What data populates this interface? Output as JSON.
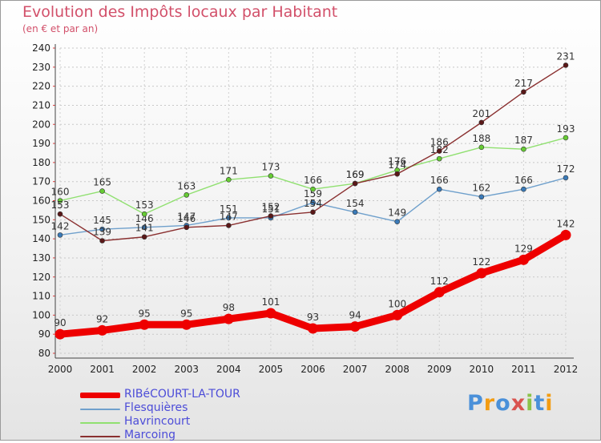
{
  "header": {
    "title": "Evolution des Impôts locaux par Habitant",
    "subtitle": "(en € et par an)"
  },
  "legend": {
    "items": [
      {
        "label": "RIBéCOURT-LA-TOUR",
        "color": "#ee0000"
      },
      {
        "label": "Flesquières",
        "color": "#6fa0cc"
      },
      {
        "label": "Havrincourt",
        "color": "#90e070"
      },
      {
        "label": "Marcoing",
        "color": "#8a3030"
      }
    ]
  },
  "logo": {
    "text": "Proxiti",
    "colors": [
      "#4a90d9",
      "#f39c12",
      "#4a90d9",
      "#d9534f",
      "#8bc34a",
      "#4a90d9",
      "#f39c12"
    ]
  },
  "chart_data": {
    "type": "line",
    "title": "Evolution des Impôts locaux par Habitant",
    "subtitle": "(en € et par an)",
    "xlabel": "",
    "ylabel": "",
    "x": [
      "2000",
      "2001",
      "2002",
      "2003",
      "2004",
      "2005",
      "2006",
      "2007",
      "2008",
      "2009",
      "2010",
      "2011",
      "2012"
    ],
    "ylim": [
      80,
      240
    ],
    "yticks": [
      80,
      90,
      100,
      110,
      120,
      130,
      140,
      150,
      160,
      170,
      180,
      190,
      200,
      210,
      220,
      230,
      240
    ],
    "grid": "horizontal dashed",
    "legend_position": "bottom-left",
    "series": [
      {
        "name": "Flesquières",
        "color": "#6fa0cc",
        "marker": "#3a7ab8",
        "values": [
          142,
          145,
          146,
          147,
          151,
          151,
          159,
          154,
          149,
          166,
          162,
          166,
          172
        ]
      },
      {
        "name": "Havrincourt",
        "color": "#90e070",
        "marker": "#66cc33",
        "values": [
          160,
          165,
          153,
          163,
          171,
          173,
          166,
          169,
          176,
          182,
          188,
          187,
          193
        ]
      },
      {
        "name": "Marcoing",
        "color": "#8a3030",
        "marker": "#5a1818",
        "values": [
          153,
          139,
          141,
          146,
          147,
          152,
          154,
          169,
          174,
          186,
          201,
          217,
          231
        ]
      },
      {
        "name": "RIBéCOURT-LA-TOUR",
        "color": "#ee0000",
        "marker": "#ee0000",
        "values": [
          90,
          92,
          95,
          95,
          98,
          101,
          93,
          94,
          100,
          112,
          122,
          129,
          142
        ]
      }
    ]
  }
}
